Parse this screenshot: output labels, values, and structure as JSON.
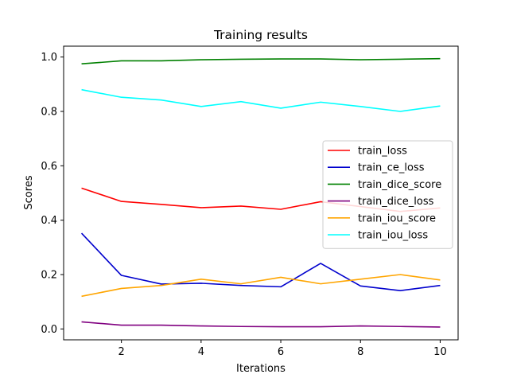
{
  "chart_data": {
    "type": "line",
    "title": "Training results",
    "xlabel": "Iterations",
    "ylabel": "Scores",
    "x": [
      1,
      2,
      3,
      4,
      5,
      6,
      7,
      8,
      9,
      10
    ],
    "xlim": [
      0.55,
      10.45
    ],
    "ylim": [
      -0.04,
      1.04
    ],
    "xticks": [
      2,
      4,
      6,
      8,
      10
    ],
    "yticks": [
      0.0,
      0.2,
      0.4,
      0.6,
      0.8,
      1.0
    ],
    "xtick_labels": [
      "2",
      "4",
      "6",
      "8",
      "10"
    ],
    "ytick_labels": [
      "0.0",
      "0.2",
      "0.4",
      "0.6",
      "0.8",
      "1.0"
    ],
    "grid": false,
    "legend_position": "center-right",
    "series": [
      {
        "name": "train_loss",
        "color": "#ff0000",
        "values": [
          0.518,
          0.469,
          0.458,
          0.446,
          0.452,
          0.44,
          0.468,
          0.45,
          0.432,
          0.445
        ]
      },
      {
        "name": "train_ce_loss",
        "color": "#0000cd",
        "values": [
          0.352,
          0.197,
          0.165,
          0.168,
          0.16,
          0.155,
          0.241,
          0.158,
          0.141,
          0.16
        ]
      },
      {
        "name": "train_dice_score",
        "color": "#008000",
        "values": [
          0.975,
          0.986,
          0.986,
          0.99,
          0.992,
          0.993,
          0.993,
          0.99,
          0.992,
          0.994
        ]
      },
      {
        "name": "train_dice_loss",
        "color": "#800080",
        "values": [
          0.026,
          0.014,
          0.014,
          0.011,
          0.009,
          0.008,
          0.008,
          0.011,
          0.009,
          0.007
        ]
      },
      {
        "name": "train_iou_score",
        "color": "#ffa500",
        "values": [
          0.12,
          0.149,
          0.16,
          0.183,
          0.166,
          0.19,
          0.166,
          0.183,
          0.2,
          0.18
        ]
      },
      {
        "name": "train_iou_loss",
        "color": "#00ffff",
        "values": [
          0.88,
          0.852,
          0.842,
          0.818,
          0.836,
          0.812,
          0.834,
          0.818,
          0.8,
          0.82
        ]
      }
    ]
  }
}
